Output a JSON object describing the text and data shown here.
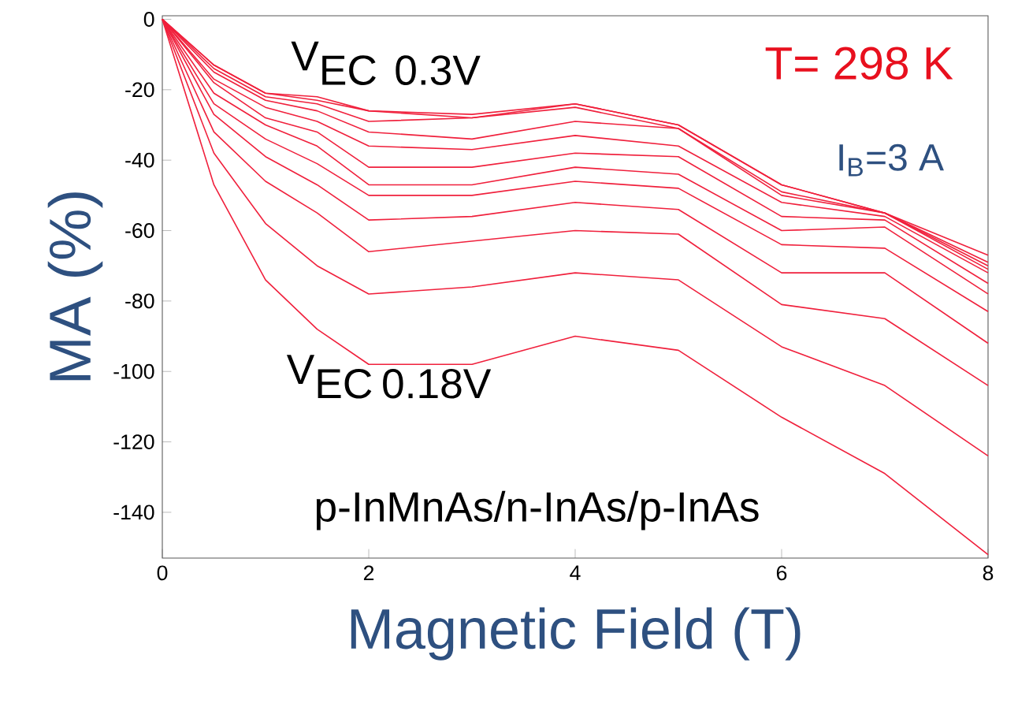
{
  "chart_data": {
    "type": "line",
    "xlabel": "Magnetic Field (T)",
    "ylabel": "MA (%)",
    "x": [
      0,
      0.5,
      1,
      1.5,
      2,
      3,
      4,
      5,
      6,
      7,
      8
    ],
    "series": [
      {
        "color": "#f0203c",
        "values": [
          0,
          -13,
          -21,
          -22,
          -26,
          -27,
          -24,
          -30,
          -47,
          -55,
          -67
        ]
      },
      {
        "color": "#f0203c",
        "values": [
          0,
          -13,
          -21,
          -23,
          -26,
          -28,
          -24,
          -30,
          -47,
          -55,
          -69
        ]
      },
      {
        "color": "#f0203c",
        "values": [
          0,
          -14,
          -22,
          -24,
          -29,
          -28,
          -25,
          -31,
          -49,
          -55,
          -70
        ]
      },
      {
        "color": "#f0203c",
        "values": [
          0,
          -15,
          -23,
          -26,
          -32,
          -34,
          -29,
          -31,
          -50,
          -55,
          -71
        ]
      },
      {
        "color": "#f0203c",
        "values": [
          0,
          -17,
          -25,
          -29,
          -36,
          -37,
          -33,
          -36,
          -52,
          -56,
          -72
        ]
      },
      {
        "color": "#f0203c",
        "values": [
          0,
          -18,
          -28,
          -32,
          -42,
          -42,
          -38,
          -39,
          -56,
          -57,
          -75
        ]
      },
      {
        "color": "#f0203c",
        "values": [
          0,
          -21,
          -30,
          -36,
          -47,
          -47,
          -42,
          -44,
          -60,
          -59,
          -78
        ]
      },
      {
        "color": "#f0203c",
        "values": [
          0,
          -24,
          -34,
          -41,
          -50,
          -50,
          -46,
          -48,
          -64,
          -65,
          -83
        ]
      },
      {
        "color": "#f0203c",
        "values": [
          0,
          -27,
          -39,
          -47,
          -57,
          -56,
          -52,
          -54,
          -72,
          -72,
          -92
        ]
      },
      {
        "color": "#f0203c",
        "values": [
          0,
          -32,
          -46,
          -55,
          -66,
          -63,
          -60,
          -61,
          -81,
          -85,
          -104
        ]
      },
      {
        "color": "#f0203c",
        "values": [
          0,
          -38,
          -58,
          -70,
          -78,
          -76,
          -72,
          -74,
          -93,
          -104,
          -124
        ]
      },
      {
        "color": "#f0203c",
        "values": [
          0,
          -47,
          -74,
          -88,
          -98,
          -98,
          -90,
          -94,
          -113,
          -129,
          -152
        ]
      }
    ],
    "xlim": [
      0,
      8
    ],
    "ylim": [
      -153,
      1
    ],
    "xticks": [
      0,
      2,
      4,
      6,
      8
    ],
    "yticks": [
      0,
      -20,
      -40,
      -60,
      -80,
      -100,
      -120,
      -140
    ],
    "grid": false,
    "marker": "none",
    "line_style": "solid",
    "annotations": [
      "\\textrm{V}_{\\textrm{EC}\\;\\;\\textrm{0.3V}}",
      "\\textrm{V}_{\\textrm{EC}\\;\\textrm{0.18V}}",
      "T= 298 K",
      "I$_{B}$=3     A",
      "p-InMnAs/n-InAs/p-InAs"
    ]
  }
}
